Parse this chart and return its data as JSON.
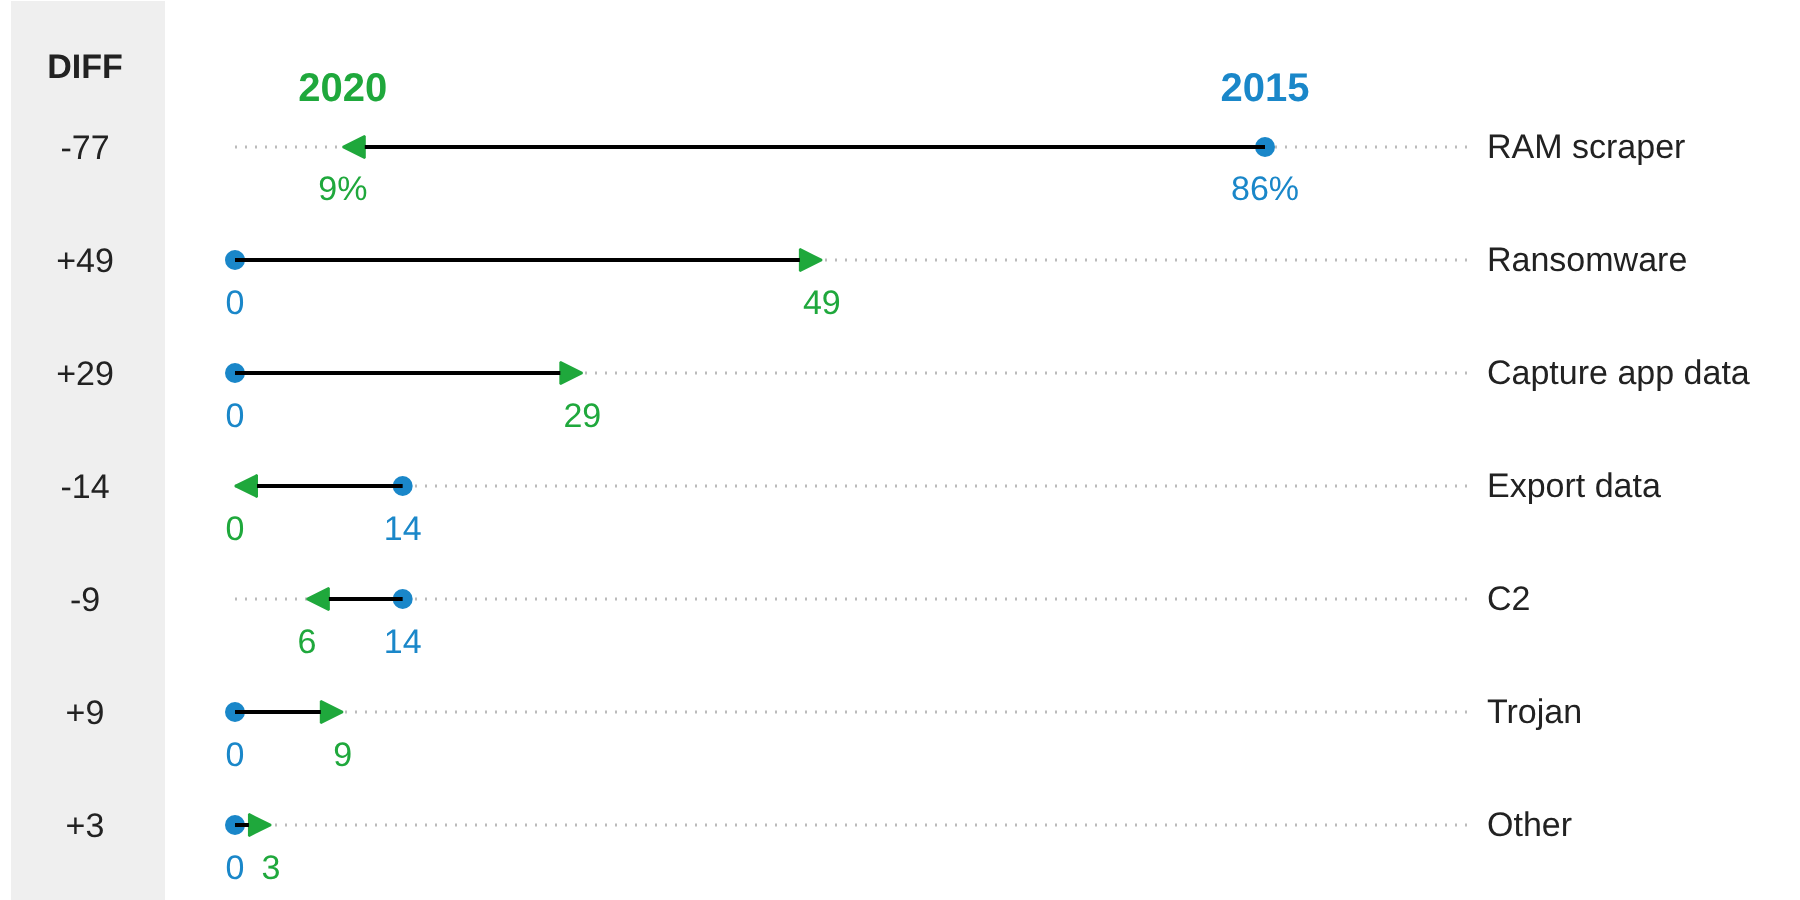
{
  "chart_data": {
    "type": "other",
    "categories": [
      "RAM scraper",
      "Ransomware",
      "Capture app data",
      "Export data",
      "C2",
      "Trojan",
      "Other"
    ],
    "series": [
      {
        "name": "2015",
        "color": "#1a87c9",
        "values": [
          86,
          0,
          0,
          14,
          14,
          0,
          0
        ],
        "value_labels": [
          "86%",
          "0",
          "0",
          "14",
          "14",
          "0",
          "0"
        ]
      },
      {
        "name": "2020",
        "color": "#1fa83c",
        "values": [
          9,
          49,
          29,
          0,
          6,
          9,
          3
        ],
        "value_labels": [
          "9%",
          "49",
          "29",
          "0",
          "6",
          "9",
          "3"
        ]
      }
    ],
    "annotations": [
      "DIFF",
      "-77",
      "+49",
      "+29",
      "-14",
      "-9",
      "+9",
      "+3"
    ]
  }
}
